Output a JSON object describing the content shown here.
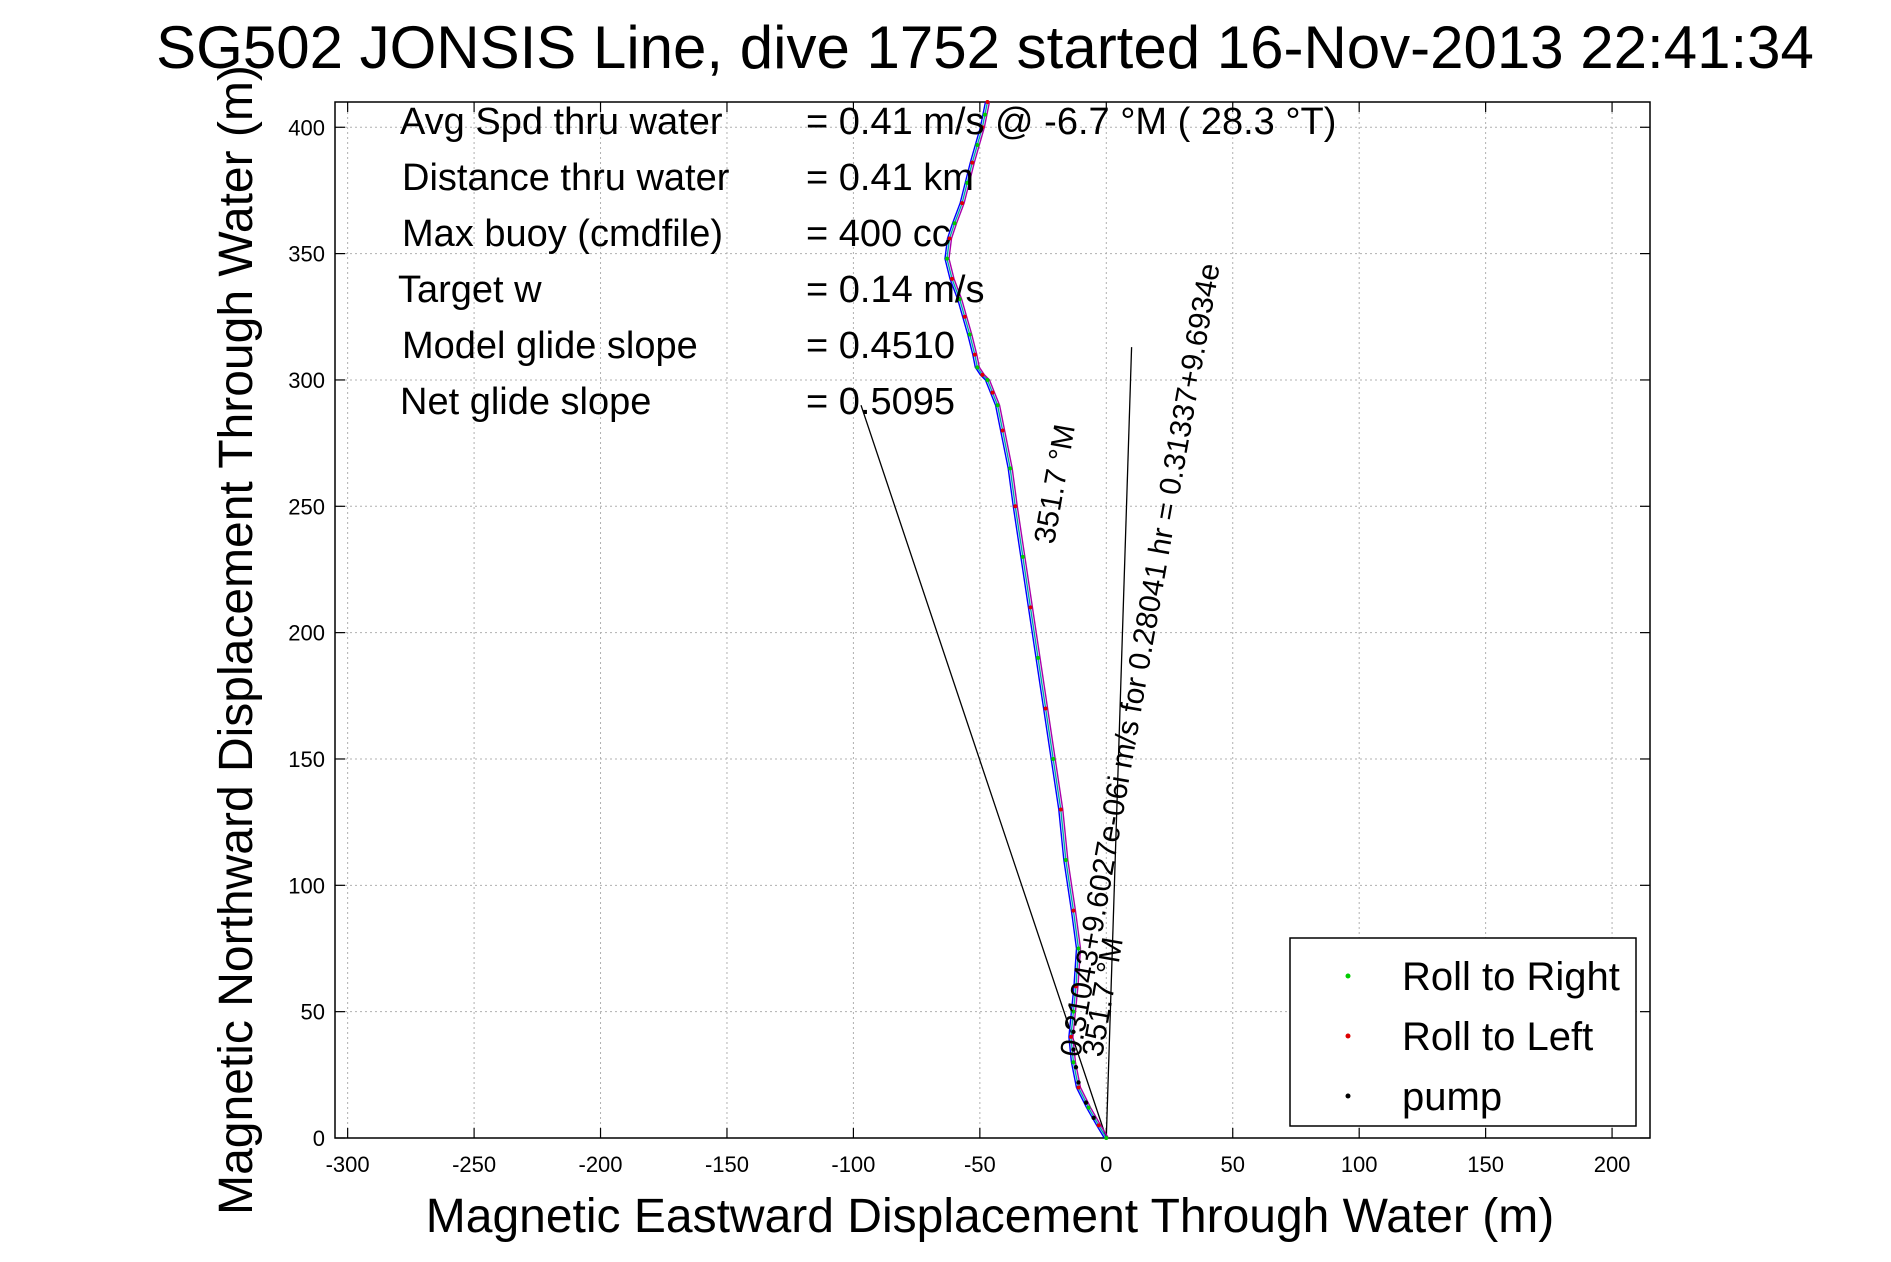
{
  "chart_data": {
    "type": "scatter",
    "title": "SG502 JONSIS Line, dive 1752 started 16-Nov-2013 22:41:34",
    "xlabel": "Magnetic Eastward Displacement Through Water (m)",
    "ylabel": "Magnetic Northward Displacement Through Water (m)",
    "xlim": [
      -305,
      215
    ],
    "ylim": [
      0,
      410
    ],
    "xticks": [
      "-300",
      "-250",
      "-200",
      "-150",
      "-100",
      "-50",
      "0",
      "50",
      "100",
      "150",
      "200"
    ],
    "yticks": [
      "0",
      "50",
      "100",
      "150",
      "200",
      "250",
      "300",
      "350",
      "400"
    ],
    "grid": true,
    "legend_position": "bottom-right",
    "stats": [
      {
        "label": "Avg Spd thru water",
        "value": "=  0.41 m/s @  -6.7 °M ( 28.3 °T)"
      },
      {
        "label": "Distance thru water",
        "value": "=  0.41 km"
      },
      {
        "label": "Max buoy (cmdfile)",
        "value": "= 400 cc"
      },
      {
        "label": "Target w",
        "value": "= 0.14 m/s"
      },
      {
        "label": "Model glide slope",
        "value": "= 0.4510"
      },
      {
        "label": "Net glide slope",
        "value": "= 0.5095"
      }
    ],
    "annotations": [
      "0.31043+9.6027e-06i m/s for 0.28041 hr = 0.31337+9.6934e",
      "351.7 °M",
      "351.7 °M"
    ],
    "series": [
      {
        "name": "Roll to Right",
        "color": "#00cc00",
        "marker": "dot"
      },
      {
        "name": "Roll to Left",
        "color": "#dd0000",
        "marker": "dot"
      },
      {
        "name": "pump",
        "color": "#000000",
        "marker": "dot"
      }
    ],
    "track": {
      "colors": [
        "#0000ff",
        "#00aaaa",
        "#aa00aa"
      ],
      "x": [
        0,
        -3,
        -7,
        -11,
        -13,
        -14,
        -13,
        -12,
        -11,
        -13,
        -16,
        -18,
        -21,
        -24,
        -27,
        -30,
        -33,
        -36,
        -38,
        -41,
        -43,
        -45,
        -47,
        -49,
        -51,
        -52,
        -54,
        -56,
        -58,
        -61,
        -63,
        -62,
        -60,
        -57,
        -55,
        -53,
        -51,
        -49,
        -48,
        -47
      ],
      "y": [
        0,
        5,
        12,
        20,
        30,
        40,
        50,
        60,
        75,
        90,
        110,
        130,
        150,
        170,
        190,
        210,
        230,
        250,
        265,
        280,
        290,
        295,
        300,
        302,
        305,
        310,
        318,
        325,
        332,
        340,
        348,
        356,
        362,
        370,
        378,
        386,
        393,
        400,
        405,
        410
      ]
    },
    "pump_points": {
      "x": [
        -5,
        -8,
        -11,
        -12,
        -13,
        -13
      ],
      "y": [
        8,
        14,
        22,
        28,
        35,
        42
      ]
    },
    "lines": [
      {
        "x": [
          0,
          -97
        ],
        "y": [
          0,
          290
        ]
      },
      {
        "x": [
          0,
          10
        ],
        "y": [
          0,
          313
        ]
      }
    ]
  }
}
